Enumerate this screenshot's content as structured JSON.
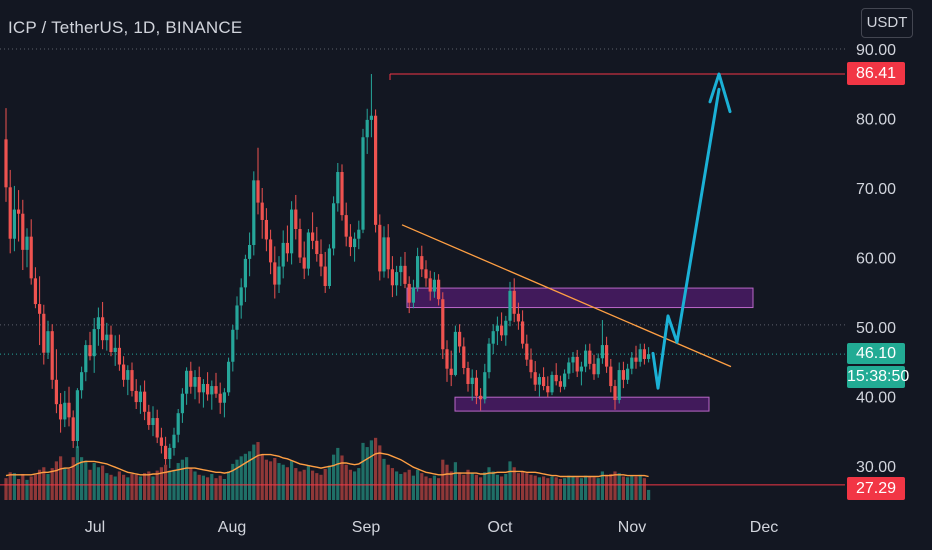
{
  "symbol_title": "ICP / TetherUS, 1D, BINANCE",
  "currency_button": "USDT",
  "price_badges": {
    "resistance": "86.41",
    "last": "46.10",
    "countdown": "15:38:50",
    "support": "27.29"
  },
  "colors": {
    "background": "#131722",
    "up": "#26a69a",
    "down": "#ef5350",
    "up_volume": "#1f6f67",
    "down_volume": "#8f3838",
    "horizontal_line": "#f23645",
    "trendline": "#ff9f43",
    "ma_line": "#ff9f43",
    "zone_fill": "#7b1fa2",
    "zone_border": "#ba68c8",
    "projection": "#1bb1d6",
    "text": "#d1d4dc"
  },
  "chart_data": {
    "type": "candlestick",
    "x_ticks": [
      "Jul",
      "Aug",
      "Sep",
      "Oct",
      "Nov",
      "Dec"
    ],
    "y_ticks": [
      "30.00",
      "40.00",
      "50.00",
      "60.00",
      "70.00",
      "80.00",
      "90.00"
    ],
    "ylim": [
      25,
      92
    ],
    "grid": false,
    "candles": [
      [
        77.0,
        81.5,
        68.0,
        70.1
      ],
      [
        70.1,
        72.6,
        60.6,
        62.7
      ],
      [
        62.7,
        70.3,
        60.9,
        66.9
      ],
      [
        66.9,
        69.7,
        62.3,
        66.3
      ],
      [
        66.3,
        68.3,
        58.2,
        61.1
      ],
      [
        61.1,
        64.2,
        58.6,
        63.0
      ],
      [
        63.0,
        65.5,
        56.1,
        57.0
      ],
      [
        57.0,
        58.6,
        52.7,
        53.3
      ],
      [
        53.3,
        57.3,
        47.4,
        51.9
      ],
      [
        51.9,
        53.2,
        44.6,
        46.3
      ],
      [
        46.3,
        50.9,
        45.4,
        49.4
      ],
      [
        49.4,
        50.4,
        41.1,
        42.4
      ],
      [
        42.4,
        46.8,
        37.6,
        38.9
      ],
      [
        38.9,
        40.5,
        34.8,
        36.7
      ],
      [
        36.7,
        40.8,
        35.6,
        39.1
      ],
      [
        39.1,
        41.4,
        35.7,
        37.0
      ],
      [
        37.0,
        38.0,
        32.6,
        33.6
      ],
      [
        33.6,
        41.2,
        32.6,
        40.9
      ],
      [
        40.9,
        44.3,
        39.7,
        43.5
      ],
      [
        43.5,
        48.1,
        42.2,
        47.4
      ],
      [
        47.4,
        49.3,
        45.2,
        45.8
      ],
      [
        45.8,
        51.3,
        43.4,
        49.7
      ],
      [
        49.7,
        52.8,
        47.3,
        51.4
      ],
      [
        51.4,
        53.6,
        46.8,
        48.1
      ],
      [
        48.1,
        50.6,
        46.6,
        48.9
      ],
      [
        48.9,
        50.2,
        45.8,
        46.4
      ],
      [
        46.4,
        48.8,
        44.4,
        47.0
      ],
      [
        47.0,
        48.9,
        43.7,
        44.6
      ],
      [
        44.6,
        45.8,
        41.4,
        42.4
      ],
      [
        42.4,
        44.5,
        40.2,
        43.8
      ],
      [
        43.8,
        44.9,
        40.0,
        40.8
      ],
      [
        40.8,
        42.5,
        38.2,
        39.2
      ],
      [
        39.2,
        41.6,
        37.5,
        40.7
      ],
      [
        40.7,
        42.3,
        36.6,
        37.8
      ],
      [
        37.8,
        38.8,
        35.2,
        35.9
      ],
      [
        35.9,
        38.6,
        34.3,
        36.9
      ],
      [
        36.9,
        38.1,
        33.3,
        34.1
      ],
      [
        34.1,
        35.5,
        31.8,
        32.9
      ],
      [
        32.9,
        34.2,
        30.2,
        31.0
      ],
      [
        31.0,
        33.2,
        29.7,
        32.6
      ],
      [
        32.6,
        35.5,
        31.5,
        34.5
      ],
      [
        34.5,
        38.2,
        33.4,
        37.6
      ],
      [
        37.6,
        41.2,
        36.2,
        40.4
      ],
      [
        40.4,
        44.2,
        38.8,
        43.7
      ],
      [
        43.7,
        45.0,
        40.4,
        41.4
      ],
      [
        41.4,
        43.8,
        39.6,
        42.8
      ],
      [
        42.8,
        44.3,
        39.0,
        40.6
      ],
      [
        40.6,
        42.5,
        38.4,
        41.8
      ],
      [
        41.8,
        43.5,
        39.4,
        40.3
      ],
      [
        40.3,
        42.3,
        38.1,
        41.5
      ],
      [
        41.5,
        43.4,
        39.8,
        40.4
      ],
      [
        40.4,
        42.0,
        37.5,
        39.1
      ],
      [
        39.1,
        41.2,
        37.0,
        40.6
      ],
      [
        40.6,
        45.6,
        40.1,
        45.0
      ],
      [
        45.0,
        50.3,
        43.6,
        49.6
      ],
      [
        49.6,
        54.4,
        48.2,
        53.1
      ],
      [
        53.1,
        57.0,
        51.2,
        55.7
      ],
      [
        55.7,
        60.4,
        53.6,
        59.8
      ],
      [
        59.8,
        63.6,
        57.3,
        61.8
      ],
      [
        61.8,
        72.4,
        60.3,
        71.1
      ],
      [
        71.1,
        75.8,
        66.2,
        67.9
      ],
      [
        67.9,
        70.0,
        62.7,
        65.4
      ],
      [
        65.4,
        67.1,
        60.9,
        62.6
      ],
      [
        62.6,
        64.0,
        57.6,
        59.3
      ],
      [
        59.3,
        61.6,
        54.1,
        56.1
      ],
      [
        56.1,
        60.2,
        54.9,
        58.7
      ],
      [
        58.7,
        63.9,
        57.0,
        62.1
      ],
      [
        62.1,
        64.6,
        59.4,
        60.6
      ],
      [
        60.6,
        68.1,
        59.0,
        66.9
      ],
      [
        66.9,
        69.0,
        62.6,
        64.1
      ],
      [
        64.1,
        65.6,
        59.2,
        60.0
      ],
      [
        60.0,
        62.3,
        56.9,
        58.4
      ],
      [
        58.4,
        64.1,
        57.4,
        63.6
      ],
      [
        63.6,
        66.5,
        61.2,
        62.4
      ],
      [
        62.4,
        64.4,
        59.4,
        60.5
      ],
      [
        60.5,
        62.6,
        57.3,
        58.7
      ],
      [
        58.7,
        60.8,
        54.9,
        55.9
      ],
      [
        55.9,
        61.9,
        55.5,
        61.3
      ],
      [
        61.3,
        68.8,
        60.3,
        67.8
      ],
      [
        67.8,
        73.6,
        66.6,
        72.3
      ],
      [
        72.3,
        73.4,
        65.3,
        66.1
      ],
      [
        66.1,
        67.9,
        61.6,
        63.0
      ],
      [
        63.0,
        64.8,
        60.2,
        61.5
      ],
      [
        61.5,
        63.6,
        59.4,
        62.7
      ],
      [
        62.7,
        65.3,
        61.2,
        64.0
      ],
      [
        64.0,
        78.5,
        63.5,
        77.3
      ],
      [
        77.3,
        81.4,
        74.9,
        79.8
      ],
      [
        79.8,
        86.4,
        77.3,
        80.4
      ],
      [
        80.4,
        81.3,
        63.6,
        64.7
      ],
      [
        64.7,
        66.2,
        56.7,
        58.0
      ],
      [
        58.0,
        64.5,
        57.1,
        62.9
      ],
      [
        62.9,
        64.8,
        57.0,
        58.3
      ],
      [
        58.3,
        60.2,
        54.3,
        56.0
      ],
      [
        56.0,
        58.8,
        54.5,
        57.9
      ],
      [
        57.9,
        60.1,
        55.9,
        58.8
      ],
      [
        58.8,
        60.8,
        55.6,
        56.2
      ],
      [
        56.2,
        57.3,
        52.0,
        53.5
      ],
      [
        53.5,
        56.8,
        52.7,
        55.7
      ],
      [
        55.7,
        61.4,
        55.1,
        60.2
      ],
      [
        60.2,
        61.7,
        57.2,
        58.3
      ],
      [
        58.3,
        59.6,
        55.8,
        57.0
      ],
      [
        57.0,
        58.1,
        53.8,
        55.1
      ],
      [
        55.1,
        57.9,
        54.2,
        56.8
      ],
      [
        56.8,
        57.6,
        53.1,
        54.0
      ],
      [
        54.0,
        55.0,
        45.4,
        46.8
      ],
      [
        46.8,
        48.1,
        42.1,
        44.0
      ],
      [
        44.0,
        46.6,
        41.5,
        43.1
      ],
      [
        43.1,
        50.2,
        42.9,
        49.3
      ],
      [
        49.3,
        50.4,
        46.3,
        47.2
      ],
      [
        47.2,
        48.5,
        43.2,
        44.1
      ],
      [
        44.1,
        45.0,
        40.7,
        41.8
      ],
      [
        41.8,
        43.9,
        39.4,
        42.7
      ],
      [
        42.7,
        43.8,
        38.9,
        40.1
      ],
      [
        40.1,
        41.2,
        38.0,
        39.6
      ],
      [
        39.6,
        44.7,
        39.0,
        43.5
      ],
      [
        43.5,
        48.4,
        42.6,
        47.6
      ],
      [
        47.6,
        50.4,
        46.1,
        49.4
      ],
      [
        49.4,
        51.5,
        47.4,
        50.2
      ],
      [
        50.2,
        52.1,
        48.0,
        48.8
      ],
      [
        48.8,
        51.6,
        47.3,
        50.9
      ],
      [
        50.9,
        56.5,
        50.1,
        55.2
      ],
      [
        55.2,
        57.0,
        50.7,
        51.9
      ],
      [
        51.9,
        53.5,
        49.6,
        50.8
      ],
      [
        50.8,
        52.4,
        46.9,
        47.6
      ],
      [
        47.6,
        48.9,
        44.4,
        45.3
      ],
      [
        45.3,
        46.9,
        42.6,
        43.5
      ],
      [
        43.5,
        45.1,
        40.8,
        41.7
      ],
      [
        41.7,
        43.3,
        40.0,
        42.8
      ],
      [
        42.8,
        44.2,
        40.9,
        41.5
      ],
      [
        41.5,
        42.9,
        39.9,
        40.6
      ],
      [
        40.6,
        43.6,
        40.2,
        43.1
      ],
      [
        43.1,
        44.8,
        41.6,
        42.2
      ],
      [
        42.2,
        43.0,
        40.6,
        41.4
      ],
      [
        41.4,
        43.9,
        41.0,
        43.3
      ],
      [
        43.3,
        45.6,
        42.5,
        44.9
      ],
      [
        44.9,
        46.4,
        43.4,
        45.7
      ],
      [
        45.7,
        46.7,
        42.8,
        43.6
      ],
      [
        43.6,
        45.0,
        41.6,
        44.3
      ],
      [
        44.3,
        47.5,
        43.5,
        46.6
      ],
      [
        46.6,
        47.6,
        43.9,
        44.7
      ],
      [
        44.7,
        46.0,
        42.4,
        43.2
      ],
      [
        43.2,
        46.2,
        42.7,
        45.5
      ],
      [
        45.5,
        51.0,
        44.7,
        47.4
      ],
      [
        47.4,
        48.6,
        43.4,
        44.3
      ],
      [
        44.3,
        45.4,
        40.6,
        41.5
      ],
      [
        41.5,
        42.4,
        38.1,
        39.5
      ],
      [
        39.5,
        44.9,
        39.0,
        43.8
      ],
      [
        43.8,
        45.0,
        41.2,
        42.4
      ],
      [
        42.4,
        44.7,
        41.8,
        44.0
      ],
      [
        44.0,
        46.4,
        43.2,
        45.6
      ],
      [
        45.6,
        47.3,
        44.0,
        45.0
      ],
      [
        45.0,
        47.6,
        44.3,
        46.8
      ],
      [
        46.8,
        47.6,
        44.6,
        45.4
      ],
      [
        45.4,
        47.1,
        44.9,
        46.1
      ]
    ],
    "volume": [
      2.6,
      3.3,
      3.2,
      2.5,
      3.1,
      2.4,
      2.8,
      3.0,
      3.6,
      3.9,
      3.1,
      3.8,
      4.6,
      5.2,
      3.8,
      3.7,
      5.1,
      6.4,
      5.1,
      4.7,
      3.6,
      4.4,
      3.9,
      4.1,
      3.2,
      3.0,
      2.8,
      3.4,
      3.0,
      2.7,
      3.1,
      3.0,
      2.8,
      3.2,
      3.4,
      2.8,
      3.5,
      3.9,
      4.2,
      3.5,
      3.6,
      4.4,
      4.8,
      5.1,
      3.8,
      3.4,
      3.0,
      2.9,
      2.7,
      3.1,
      2.6,
      2.9,
      2.5,
      3.4,
      4.3,
      4.8,
      5.2,
      5.5,
      5.8,
      6.6,
      6.9,
      5.4,
      4.8,
      4.6,
      5.0,
      4.4,
      4.2,
      3.9,
      4.7,
      3.8,
      3.4,
      3.6,
      4.1,
      3.5,
      3.2,
      3.0,
      3.7,
      4.1,
      5.4,
      6.2,
      5.3,
      4.2,
      3.6,
      3.4,
      3.8,
      6.8,
      6.3,
      7.1,
      7.4,
      6.5,
      4.9,
      4.2,
      3.8,
      3.4,
      3.1,
      3.3,
      3.6,
      2.9,
      3.6,
      3.2,
      2.8,
      2.6,
      2.9,
      2.6,
      4.8,
      4.2,
      3.4,
      4.5,
      3.3,
      3.0,
      3.6,
      3.2,
      3.0,
      2.7,
      3.3,
      3.9,
      3.4,
      3.0,
      2.8,
      3.1,
      4.6,
      3.9,
      3.2,
      3.4,
      3.2,
      3.0,
      2.9,
      2.7,
      2.8,
      2.6,
      2.8,
      2.7,
      2.5,
      2.6,
      2.9,
      2.8,
      2.7,
      2.6,
      2.9,
      2.8,
      2.7,
      2.6,
      3.4,
      3.0,
      3.1,
      3.4,
      3.2,
      2.8,
      2.7,
      2.9,
      2.8,
      3.0,
      2.6,
      1.2
    ],
    "moving_average": [
      2.9,
      3.0,
      3.0,
      3.0,
      3.0,
      3.0,
      3.0,
      3.1,
      3.2,
      3.3,
      3.3,
      3.4,
      3.5,
      3.7,
      3.8,
      3.8,
      4.0,
      4.3,
      4.5,
      4.6,
      4.6,
      4.6,
      4.5,
      4.4,
      4.3,
      4.1,
      3.9,
      3.7,
      3.5,
      3.3,
      3.2,
      3.1,
      3.0,
      3.0,
      3.0,
      3.1,
      3.1,
      3.2,
      3.3,
      3.4,
      3.5,
      3.6,
      3.7,
      3.8,
      3.8,
      3.8,
      3.7,
      3.6,
      3.5,
      3.4,
      3.3,
      3.3,
      3.2,
      3.3,
      3.5,
      3.8,
      4.1,
      4.4,
      4.7,
      5.0,
      5.3,
      5.4,
      5.4,
      5.4,
      5.3,
      5.2,
      5.0,
      4.9,
      4.7,
      4.5,
      4.3,
      4.2,
      4.1,
      4.0,
      3.9,
      3.8,
      3.9,
      4.0,
      4.1,
      4.3,
      4.4,
      4.4,
      4.3,
      4.2,
      4.3,
      4.6,
      4.9,
      5.2,
      5.5,
      5.6,
      5.5,
      5.4,
      5.2,
      5.0,
      4.8,
      4.5,
      4.2,
      3.9,
      3.7,
      3.5,
      3.3,
      3.2,
      3.1,
      3.0,
      3.0,
      3.1,
      3.1,
      3.2,
      3.2,
      3.2,
      3.2,
      3.2,
      3.2,
      3.1,
      3.1,
      3.2,
      3.2,
      3.3,
      3.3,
      3.3,
      3.4,
      3.4,
      3.4,
      3.4,
      3.3,
      3.3,
      3.3,
      3.2,
      3.1,
      3.0,
      2.9,
      2.9,
      2.8,
      2.8,
      2.8,
      2.8,
      2.8,
      2.8,
      2.8,
      2.8,
      2.8,
      2.8,
      2.9,
      2.9,
      2.9,
      3.0,
      3.0,
      3.0,
      2.9,
      2.9,
      2.9,
      2.9,
      2.9,
      2.8
    ],
    "annotations": {
      "resistance_level": 86.41,
      "support_level": 27.29,
      "descending_trendline": [
        [
          0,
          64.7
        ],
        [
          1,
          44.3
        ]
      ],
      "resistance_zone": [
        52.8,
        55.6
      ],
      "support_zone": [
        37.9,
        39.9
      ],
      "projection_path": [
        46.2,
        41.2,
        51.6,
        47.8,
        84.2
      ],
      "projection_arrowhead": [
        [
          82.4,
          83.2
        ],
        [
          86.4,
          86.4
        ],
        [
          81.2,
          86.4
        ]
      ]
    }
  }
}
